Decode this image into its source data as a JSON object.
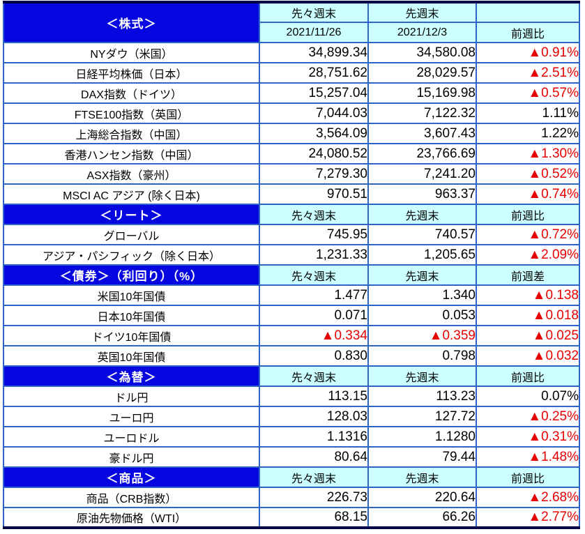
{
  "colors": {
    "section_bar_blue": "#0606E0",
    "column_header_cyan": "#CCFFFF",
    "grid_border_blue": "#2E64C8",
    "outer_thick_border_navy": "#000046",
    "negative_red": "#E80000",
    "text_black": "#000000",
    "section_text_white": "#FFFFFF"
  },
  "negative_marker": "▲",
  "sections": [
    {
      "title": "＜株式＞",
      "pre_header": [
        "先々週末",
        "先週末",
        ""
      ],
      "subheader": [
        "2021/11/26",
        "2021/12/3",
        "前週比"
      ],
      "rows": [
        {
          "label": "NYダウ（米国）",
          "values": [
            "34,899.34",
            "34,580.08",
            "▲0.91%"
          ]
        },
        {
          "label": "日経平均株価（日本）",
          "values": [
            "28,751.62",
            "28,029.57",
            "▲2.51%"
          ]
        },
        {
          "label": "DAX指数（ドイツ）",
          "values": [
            "15,257.04",
            "15,169.98",
            "▲0.57%"
          ]
        },
        {
          "label": "FTSE100指数（英国）",
          "values": [
            "7,044.03",
            "7,122.32",
            "1.11%"
          ]
        },
        {
          "label": "上海総合指数（中国）",
          "values": [
            "3,564.09",
            "3,607.43",
            "1.22%"
          ]
        },
        {
          "label": "香港ハンセン指数（中国）",
          "values": [
            "24,080.52",
            "23,766.69",
            "▲1.30%"
          ]
        },
        {
          "label": "ASX指数（豪州）",
          "values": [
            "7,279.30",
            "7,241.20",
            "▲0.52%"
          ]
        },
        {
          "label": "MSCI AC アジア (除く日本)",
          "values": [
            "970.51",
            "963.37",
            "▲0.74%"
          ]
        }
      ]
    },
    {
      "title": "＜リート＞",
      "subheader": [
        "先々週末",
        "先週末",
        "前週比"
      ],
      "rows": [
        {
          "label": "グローバル",
          "values": [
            "745.95",
            "740.57",
            "▲0.72%"
          ]
        },
        {
          "label": "アジア・パシフィック（除く日本）",
          "values": [
            "1,231.33",
            "1,205.65",
            "▲2.09%"
          ]
        }
      ]
    },
    {
      "title": "＜債券＞（利回り）（%）",
      "subheader": [
        "先々週末",
        "先週末",
        "前週差"
      ],
      "rows": [
        {
          "label": "米国10年国債",
          "values": [
            "1.477",
            "1.340",
            "▲0.138"
          ]
        },
        {
          "label": "日本10年国債",
          "values": [
            "0.071",
            "0.053",
            "▲0.018"
          ]
        },
        {
          "label": "ドイツ10年国債",
          "values": [
            "▲0.334",
            "▲0.359",
            "▲0.025"
          ]
        },
        {
          "label": "英国10年国債",
          "values": [
            "0.830",
            "0.798",
            "▲0.032"
          ]
        }
      ]
    },
    {
      "title": "＜為替＞",
      "subheader": [
        "先々週末",
        "先週末",
        "前週比"
      ],
      "rows": [
        {
          "label": "ドル円",
          "values": [
            "113.15",
            "113.23",
            "0.07%"
          ]
        },
        {
          "label": "ユーロ円",
          "values": [
            "128.03",
            "127.72",
            "▲0.25%"
          ]
        },
        {
          "label": "ユーロドル",
          "values": [
            "1.1316",
            "1.1280",
            "▲0.31%"
          ]
        },
        {
          "label": "豪ドル円",
          "values": [
            "80.64",
            "79.44",
            "▲1.48%"
          ]
        }
      ]
    },
    {
      "title": "＜商品＞",
      "subheader": [
        "先々週末",
        "先週末",
        "前週比"
      ],
      "rows": [
        {
          "label": "商品（CRB指数）",
          "values": [
            "226.73",
            "220.64",
            "▲2.68%"
          ]
        },
        {
          "label": "原油先物価格（WTI）",
          "values": [
            "68.15",
            "66.26",
            "▲2.77%"
          ]
        }
      ]
    }
  ]
}
